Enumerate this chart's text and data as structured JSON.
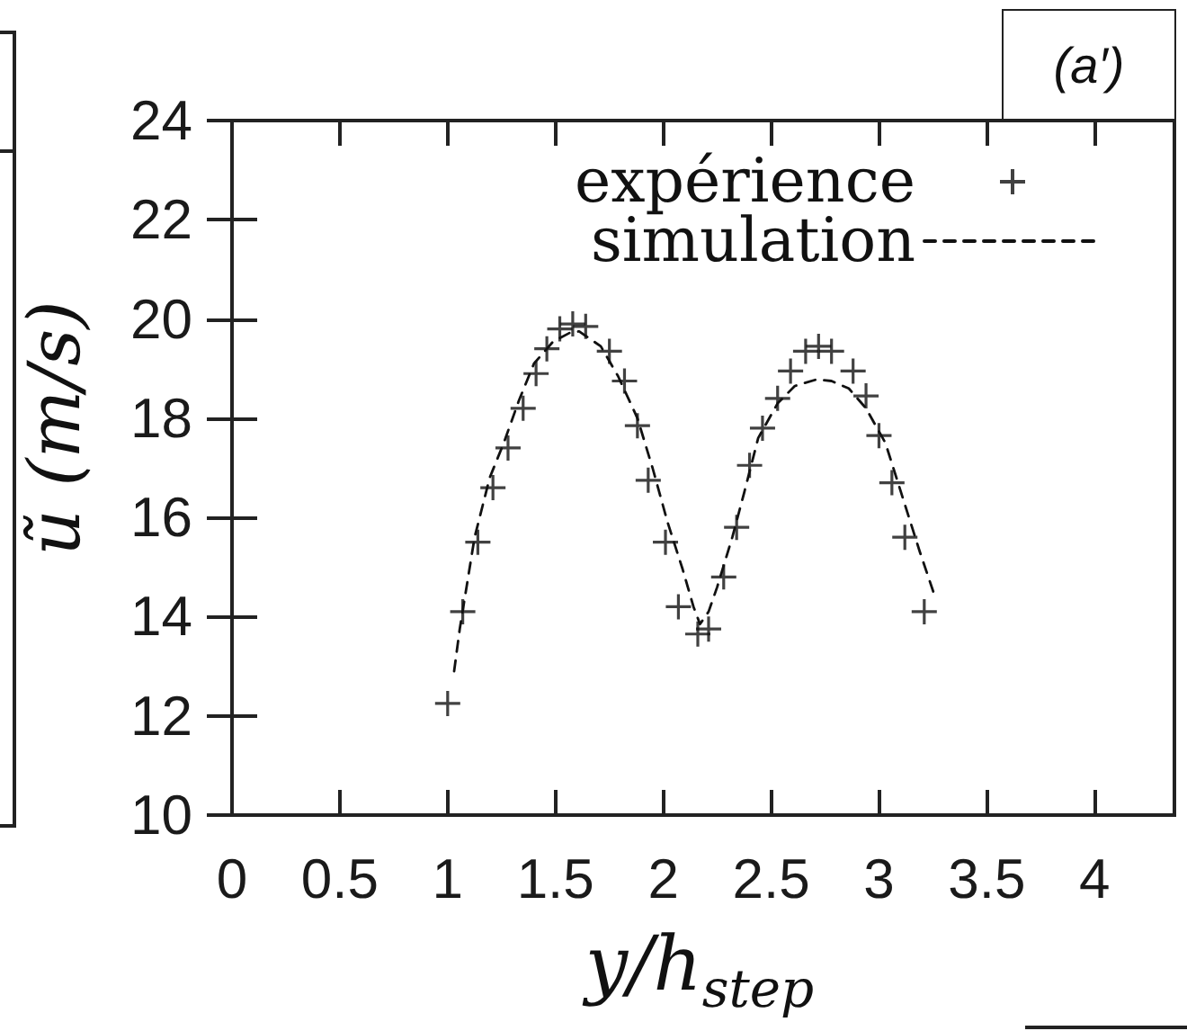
{
  "chart_data": {
    "type": "scatter",
    "xlabel": "y/h$_{step}$",
    "ylabel": "ũ (m/s)",
    "annotations": [
      "(a′)"
    ],
    "xlim": [
      0,
      4.37
    ],
    "xticks": [
      0,
      0.5,
      1,
      1.5,
      2,
      2.5,
      3,
      3.5,
      4
    ],
    "ylim": [
      10,
      24
    ],
    "yticks": [
      10,
      12,
      14,
      16,
      18,
      20,
      22,
      24
    ],
    "legend": "top right",
    "series": [
      {
        "name": "expérience",
        "marker": "cross",
        "color": "#111111",
        "x": [
          1.0,
          1.07,
          1.14,
          1.21,
          1.28,
          1.35,
          1.41,
          1.46,
          1.52,
          1.58,
          1.64,
          1.75,
          1.82,
          1.88,
          1.93,
          2.01,
          2.07,
          2.16,
          2.21,
          2.28,
          2.34,
          2.4,
          2.46,
          2.53,
          2.59,
          2.66,
          2.72,
          2.78,
          2.88,
          2.94,
          3.0,
          3.06,
          3.12,
          3.21
        ],
        "values": [
          12.25,
          14.1,
          15.5,
          16.6,
          17.4,
          18.2,
          18.9,
          19.4,
          19.8,
          19.9,
          19.85,
          19.35,
          18.75,
          17.85,
          16.75,
          15.5,
          14.2,
          13.65,
          13.75,
          14.8,
          15.8,
          17.05,
          17.8,
          18.4,
          18.95,
          19.35,
          19.45,
          19.35,
          18.95,
          18.45,
          17.65,
          16.7,
          15.6,
          14.1
        ]
      },
      {
        "name": "simulation",
        "type": "line",
        "marker": "none",
        "line_style": "dashed",
        "color": "#111111",
        "x": [
          1.03,
          1.056,
          1.125,
          1.195,
          1.26,
          1.33,
          1.4,
          1.49,
          1.57,
          1.61,
          1.71,
          1.79,
          1.88,
          1.95,
          2.02,
          2.09,
          2.14,
          2.17,
          2.21,
          2.25,
          2.32,
          2.375,
          2.44,
          2.53,
          2.61,
          2.71,
          2.78,
          2.86,
          2.94,
          3.03,
          3.11,
          3.19,
          3.26
        ],
        "values": [
          12.9,
          13.75,
          15.6,
          16.8,
          17.5,
          18.35,
          19.1,
          19.55,
          19.73,
          19.75,
          19.45,
          18.85,
          18.0,
          17.0,
          15.9,
          14.95,
          14.2,
          13.85,
          14.1,
          14.6,
          15.6,
          16.5,
          17.6,
          18.3,
          18.65,
          18.78,
          18.75,
          18.6,
          18.2,
          17.5,
          16.4,
          15.3,
          14.4
        ]
      }
    ]
  }
}
